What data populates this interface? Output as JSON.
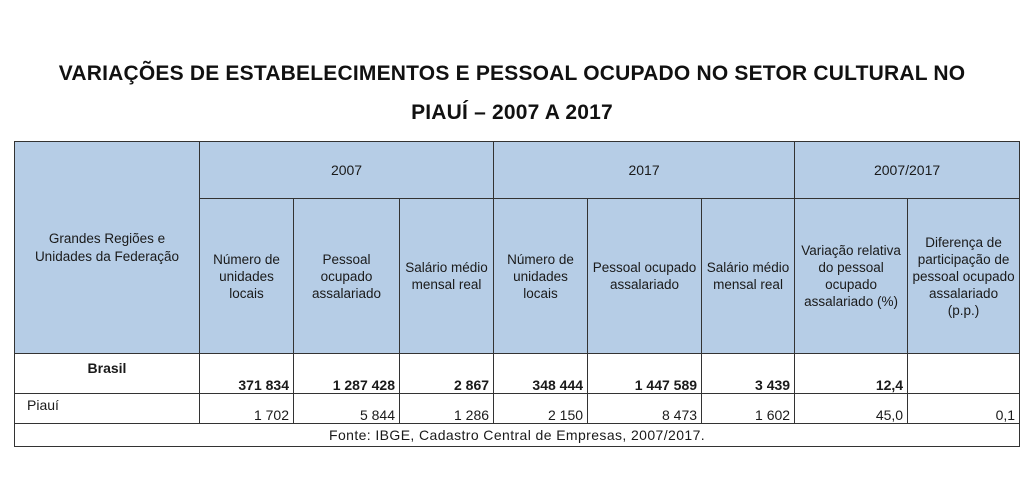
{
  "title": {
    "line1": "VARIAÇÕES DE ESTABELECIMENTOS E PESSOAL OCUPADO NO SETOR CULTURAL NO",
    "line2": "PIAUÍ – 2007 A 2017"
  },
  "table": {
    "region_header": "Grandes Regiões e Unidades da Federação",
    "groups": [
      "2007",
      "2017",
      "2007/2017"
    ],
    "sub_headers": [
      "Número de unidades locais",
      "Pessoal ocupado assalariado",
      "Salário médio mensal real",
      "Número de unidades locais",
      "Pessoal ocupado assalariado",
      "Salário médio mensal real",
      "Variação relativa do pessoal ocupado assalariado (%)",
      "Diferença de participação de pessoal ocupado assalariado (p.p.)"
    ],
    "rows": [
      {
        "region": "Brasil",
        "values": [
          "371 834",
          "1 287 428",
          "2 867",
          "348 444",
          "1 447 589",
          "3 439",
          "12,4",
          ""
        ]
      },
      {
        "region": "Piauí",
        "values": [
          "1 702",
          "5 844",
          "1 286",
          "2 150",
          "8 473",
          "1 602",
          "45,0",
          "0,1"
        ]
      }
    ],
    "source": "Fonte: IBGE, Cadastro Central de Empresas, 2007/2017."
  }
}
